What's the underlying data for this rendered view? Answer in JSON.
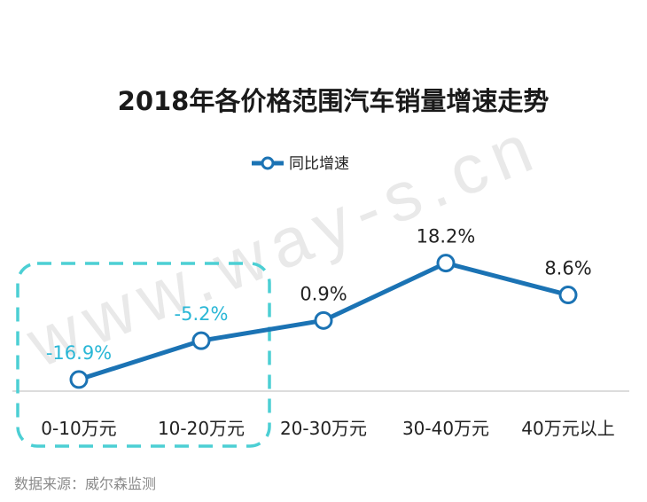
{
  "chart_data": {
    "type": "line",
    "title": "2018年各价格范围汽车销量增速走势",
    "categories": [
      "0-10万元",
      "10-20万元",
      "20-30万元",
      "30-40万元",
      "40万元以上"
    ],
    "series": [
      {
        "name": "同比增速",
        "values": [
          -16.9,
          -5.2,
          0.9,
          18.2,
          8.6
        ]
      }
    ],
    "data_labels": [
      "-16.9%",
      "-5.2%",
      "0.9%",
      "18.2%",
      "8.6%"
    ],
    "highlighted_categories": [
      "0-10万元",
      "10-20万元"
    ],
    "ylim": [
      -22,
      30
    ],
    "grid": false,
    "legend_position": "top-center"
  },
  "source": "数据来源：威尔森监测",
  "watermark": "www.way-s.cn",
  "colors": {
    "line": "#1b73b4",
    "highlight": "#2ab7d6",
    "highlight_box": "#4ccfd4",
    "axis": "#c8c8c8",
    "text": "#222222"
  }
}
